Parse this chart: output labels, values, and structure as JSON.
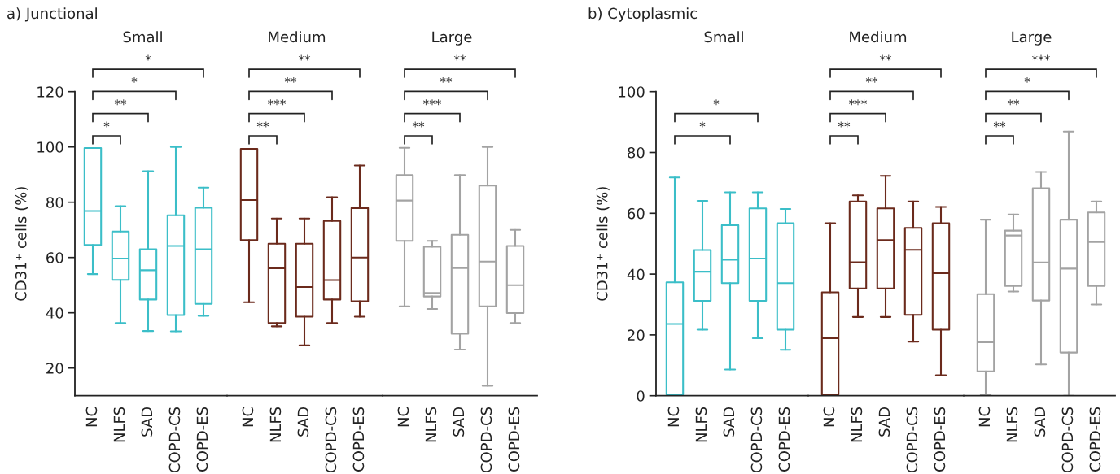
{
  "chart_data": [
    {
      "type": "box",
      "title": "a) Junctional",
      "subtitle": "Small",
      "ylabel": "CD31⁺ cells (%)",
      "categories": [
        "NC",
        "NLFS",
        "SAD",
        "COPD-CS",
        "COPD-ES"
      ],
      "colors": [
        "#3bbec8",
        "#3bbec8",
        "#3bbec8",
        "#3bbec8",
        "#3bbec8"
      ],
      "ylim": [
        10,
        120
      ],
      "yticks": [
        20,
        40,
        60,
        80,
        100,
        120
      ],
      "boxes": [
        {
          "low": 54.0,
          "q1": 64.5,
          "median": 76.8,
          "q3": 99.6,
          "high": 99.6
        },
        {
          "low": 36.3,
          "q1": 51.9,
          "median": 59.6,
          "q3": 69.4,
          "high": 78.6
        },
        {
          "low": 33.4,
          "q1": 44.8,
          "median": 55.4,
          "q3": 63.0,
          "high": 91.2
        },
        {
          "low": 33.3,
          "q1": 39.2,
          "median": 64.2,
          "q3": 75.3,
          "high": 100.0
        },
        {
          "low": 38.9,
          "q1": 43.2,
          "median": 63.0,
          "q3": 78.0,
          "high": 85.3
        }
      ],
      "annotations": [
        "*",
        "**",
        "*",
        "*"
      ]
    },
    {
      "type": "box",
      "subtitle": "Medium",
      "categories": [
        "NC",
        "NLFS",
        "SAD",
        "COPD-CS",
        "COPD-ES"
      ],
      "colors": [
        "#6b2a1c",
        "#6b2a1c",
        "#6b2a1c",
        "#6b2a1c",
        "#6b2a1c"
      ],
      "ylim": [
        10,
        120
      ],
      "yticks": [
        20,
        40,
        60,
        80,
        100,
        120
      ],
      "tick_labels": "x",
      "boxes": [
        {
          "low": 43.8,
          "q1": 66.3,
          "median": 80.8,
          "q3": 99.3,
          "high": 99.3
        },
        {
          "low": 35.1,
          "q1": 36.3,
          "median": 56.1,
          "q3": 65.0,
          "high": 74.1
        },
        {
          "low": 28.2,
          "q1": 38.6,
          "median": 49.3,
          "q3": 65.0,
          "high": 74.1
        },
        {
          "low": 36.3,
          "q1": 44.8,
          "median": 51.8,
          "q3": 73.2,
          "high": 81.8
        },
        {
          "low": 38.6,
          "q1": 44.2,
          "median": 60.0,
          "q3": 77.9,
          "high": 93.3
        }
      ],
      "annotations": [
        "**",
        "***",
        "**",
        "**"
      ]
    },
    {
      "type": "box",
      "subtitle": "Large",
      "categories": [
        "NC",
        "NLFS",
        "SAD",
        "COPD-CS",
        "COPD-ES"
      ],
      "colors": [
        "#a3a3a3",
        "#a3a3a3",
        "#a3a3a3",
        "#a3a3a3",
        "#a3a3a3"
      ],
      "ylim": [
        10,
        120
      ],
      "yticks": [
        20,
        40,
        60,
        80,
        100,
        120
      ],
      "tick_labels": "x",
      "boxes": [
        {
          "low": 42.3,
          "q1": 66.0,
          "median": 80.6,
          "q3": 89.8,
          "high": 99.7
        },
        {
          "low": 41.4,
          "q1": 45.9,
          "median": 47.2,
          "q3": 63.9,
          "high": 66.0
        },
        {
          "low": 26.7,
          "q1": 32.4,
          "median": 56.2,
          "q3": 68.2,
          "high": 89.8
        },
        {
          "low": 13.6,
          "q1": 42.3,
          "median": 58.5,
          "q3": 86.0,
          "high": 100.0
        },
        {
          "low": 36.3,
          "q1": 39.9,
          "median": 50.0,
          "q3": 64.2,
          "high": 70.0
        }
      ],
      "annotations": [
        "**",
        "***",
        "**",
        "**"
      ]
    },
    {
      "type": "box",
      "title": "b) Cytoplasmic",
      "subtitle": "Small",
      "ylabel": "CD31⁺ cells (%)",
      "categories": [
        "NC",
        "NLFS",
        "SAD",
        "COPD-CS",
        "COPD-ES"
      ],
      "colors": [
        "#3bbec8",
        "#3bbec8",
        "#3bbec8",
        "#3bbec8",
        "#3bbec8"
      ],
      "ylim": [
        0,
        100
      ],
      "yticks": [
        0,
        20,
        40,
        60,
        80,
        100
      ],
      "boxes": [
        {
          "low": 0.4,
          "q1": 0.4,
          "median": 23.6,
          "q3": 37.3,
          "high": 71.8
        },
        {
          "low": 21.7,
          "q1": 31.2,
          "median": 40.8,
          "q3": 47.9,
          "high": 64.1
        },
        {
          "low": 8.6,
          "q1": 37.0,
          "median": 44.7,
          "q3": 56.1,
          "high": 66.9
        },
        {
          "low": 18.9,
          "q1": 31.2,
          "median": 45.1,
          "q3": 61.6,
          "high": 66.9
        },
        {
          "low": 15.1,
          "q1": 21.7,
          "median": 37.0,
          "q3": 56.7,
          "high": 61.4
        }
      ],
      "annotations": [
        "*",
        "*"
      ]
    },
    {
      "type": "box",
      "subtitle": "Medium",
      "categories": [
        "NC",
        "NLFS",
        "SAD",
        "COPD-CS",
        "COPD-ES"
      ],
      "colors": [
        "#6b2a1c",
        "#6b2a1c",
        "#6b2a1c",
        "#6b2a1c",
        "#6b2a1c"
      ],
      "ylim": [
        0,
        100
      ],
      "yticks": [
        0,
        20,
        40,
        60,
        80,
        100
      ],
      "tick_labels": "x",
      "boxes": [
        {
          "low": 0.4,
          "q1": 0.4,
          "median": 18.9,
          "q3": 34.0,
          "high": 56.7
        },
        {
          "low": 25.9,
          "q1": 35.3,
          "median": 43.9,
          "q3": 63.9,
          "high": 65.9
        },
        {
          "low": 25.9,
          "q1": 35.3,
          "median": 51.2,
          "q3": 61.6,
          "high": 72.3
        },
        {
          "low": 17.8,
          "q1": 26.6,
          "median": 48.0,
          "q3": 55.2,
          "high": 63.9
        },
        {
          "low": 6.7,
          "q1": 21.7,
          "median": 40.3,
          "q3": 56.7,
          "high": 62.1
        }
      ],
      "annotations": [
        "**",
        "***",
        "**",
        "**"
      ]
    },
    {
      "type": "box",
      "subtitle": "Large",
      "categories": [
        "NC",
        "NLFS",
        "SAD",
        "COPD-CS",
        "COPD-ES"
      ],
      "colors": [
        "#a3a3a3",
        "#a3a3a3",
        "#a3a3a3",
        "#a3a3a3",
        "#a3a3a3"
      ],
      "ylim": [
        0,
        100
      ],
      "yticks": [
        0,
        20,
        40,
        60,
        80,
        100
      ],
      "tick_labels": "x",
      "boxes": [
        {
          "low": 0.4,
          "q1": 8.0,
          "median": 17.6,
          "q3": 33.4,
          "high": 57.9
        },
        {
          "low": 34.3,
          "q1": 36.1,
          "median": 52.7,
          "q3": 54.3,
          "high": 59.6
        },
        {
          "low": 10.3,
          "q1": 31.3,
          "median": 43.8,
          "q3": 68.2,
          "high": 73.6
        },
        {
          "low": 0.0,
          "q1": 14.2,
          "median": 41.8,
          "q3": 57.9,
          "high": 86.9
        },
        {
          "low": 30.0,
          "q1": 36.1,
          "median": 50.5,
          "q3": 60.3,
          "high": 63.9
        }
      ],
      "annotations": [
        "**",
        "**",
        "*",
        "***"
      ]
    }
  ]
}
